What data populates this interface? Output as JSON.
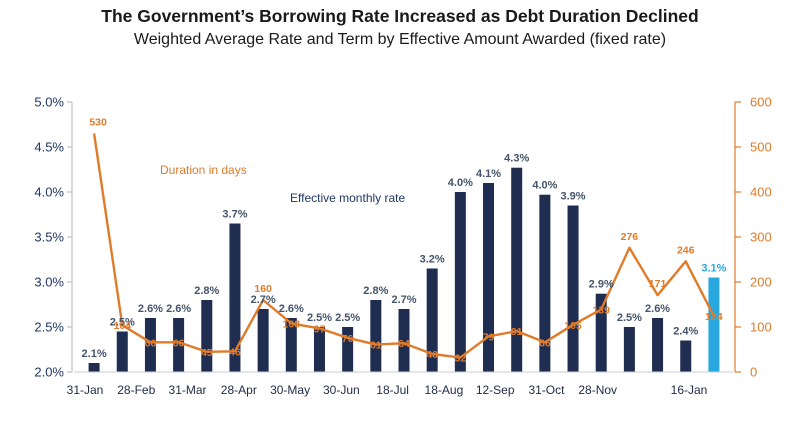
{
  "chart_data": {
    "type": "bar+line",
    "title": "The Government’s Borrowing Rate Increased as Debt Duration Declined",
    "subtitle": "Weighted Average Rate and Term by Effective Amount Awarded (fixed rate)",
    "left_axis": {
      "ticks": [
        "2.0%",
        "2.5%",
        "3.0%",
        "3.5%",
        "4.0%",
        "4.5%",
        "5.0%"
      ],
      "ylim": [
        2.0,
        5.0
      ]
    },
    "right_axis": {
      "ticks": [
        "0",
        "100",
        "200",
        "300",
        "400",
        "500",
        "600"
      ],
      "ylim": [
        0,
        600
      ]
    },
    "x_tick_labels": [
      "31-Jan",
      "28-Feb",
      "31-Mar",
      "28-Apr",
      "30-May",
      "30-Jun",
      "18-Jul",
      "18-Aug",
      "12-Sep",
      "31-Oct",
      "28-Nov",
      "16-Jan"
    ],
    "series": [
      {
        "name": "Effective monthly rate",
        "kind": "bar",
        "values": [
          2.1,
          2.45,
          2.6,
          2.6,
          2.8,
          3.65,
          2.7,
          2.6,
          2.5,
          2.5,
          2.8,
          2.7,
          3.15,
          4.0,
          4.1,
          4.27,
          3.97,
          3.85,
          2.87,
          2.5,
          2.6,
          2.35,
          3.05
        ],
        "labels": [
          "2.1%",
          "2.5%",
          "2.6%",
          "2.6%",
          "2.8%",
          "3.7%",
          "2.7%",
          "2.6%",
          "2.5%",
          "2.5%",
          "2.8%",
          "2.7%",
          "3.2%",
          "4.0%",
          "4.1%",
          "4.3%",
          "4.0%",
          "3.9%",
          "2.9%",
          "2.5%",
          "2.6%",
          "2.4%",
          "3.1%"
        ],
        "highlight_index": 22,
        "color": "#1f2d50",
        "highlight_color": "#29a8e0"
      },
      {
        "name": "Duration in days",
        "kind": "line",
        "values": [
          530,
          104,
          66,
          66,
          45,
          46,
          160,
          108,
          97,
          76,
          61,
          64,
          40,
          32,
          79,
          91,
          66,
          105,
          139,
          276,
          171,
          246,
          124
        ],
        "labels": [
          "530",
          "104",
          "66",
          "66",
          "45",
          "46",
          "160",
          "108",
          "97",
          "76",
          "61",
          "64",
          "40",
          "32",
          "79",
          "91",
          "66",
          "105",
          "139",
          "276",
          "171",
          "246",
          "124"
        ],
        "color": "#e07b2a"
      }
    ],
    "annotations": [
      "Duration in days",
      "Effective monthly rate"
    ]
  }
}
